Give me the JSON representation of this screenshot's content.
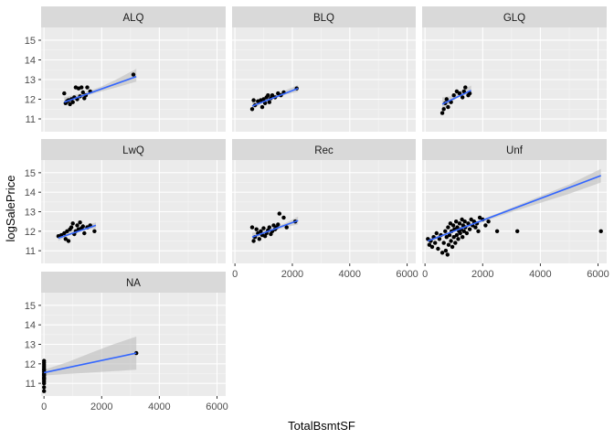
{
  "chart_data": {
    "type": "scatter",
    "title": "",
    "xlabel": "TotalBsmtSF",
    "ylabel": "logSalePrice",
    "xlim": [
      -100,
      6300
    ],
    "ylim": [
      10.35,
      15.65
    ],
    "x_ticks": [
      0,
      2000,
      4000,
      6000
    ],
    "y_ticks": [
      11,
      12,
      13,
      14,
      15
    ],
    "grid": true,
    "smooth": "linear fit with confidence band",
    "colors": {
      "panel_bg": "#ebebeb",
      "strip_bg": "#d9d9d9",
      "grid_major": "#ffffff",
      "grid_minor": "#f5f5f5",
      "point": "#000000",
      "fit_line": "#3366ff",
      "band": "#bdbdbd"
    },
    "facets": [
      {
        "label": "ALQ",
        "fit": {
          "x": [
            700,
            3200
          ],
          "y": [
            11.85,
            13.15
          ]
        },
        "band": {
          "x": [
            700,
            1000,
            1500,
            2000,
            2500,
            3200
          ],
          "lower": [
            11.68,
            11.95,
            12.2,
            12.4,
            12.6,
            12.9
          ],
          "upper": [
            12.1,
            12.2,
            12.38,
            12.65,
            13.0,
            13.55
          ]
        },
        "points": [
          [
            700,
            12.3
          ],
          [
            750,
            11.8
          ],
          [
            800,
            11.9
          ],
          [
            850,
            11.95
          ],
          [
            900,
            11.75
          ],
          [
            950,
            12.0
          ],
          [
            1000,
            11.85
          ],
          [
            1050,
            12.1
          ],
          [
            1100,
            12.6
          ],
          [
            1150,
            12.0
          ],
          [
            1200,
            12.55
          ],
          [
            1250,
            12.15
          ],
          [
            1300,
            12.6
          ],
          [
            1350,
            12.35
          ],
          [
            1400,
            12.05
          ],
          [
            1450,
            12.2
          ],
          [
            1500,
            12.6
          ],
          [
            1600,
            12.4
          ],
          [
            3100,
            13.25
          ]
        ]
      },
      {
        "label": "BLQ",
        "fit": {
          "x": [
            600,
            2200
          ],
          "y": [
            11.65,
            12.55
          ]
        },
        "band": {
          "x": [
            600,
            1000,
            1400,
            1800,
            2200
          ],
          "lower": [
            11.45,
            11.85,
            12.05,
            12.25,
            12.38
          ],
          "upper": [
            11.85,
            12.0,
            12.22,
            12.48,
            12.72
          ]
        },
        "points": [
          [
            600,
            11.5
          ],
          [
            650,
            11.95
          ],
          [
            700,
            11.7
          ],
          [
            800,
            11.9
          ],
          [
            900,
            11.95
          ],
          [
            950,
            11.6
          ],
          [
            1000,
            12.0
          ],
          [
            1050,
            11.8
          ],
          [
            1100,
            12.1
          ],
          [
            1150,
            12.2
          ],
          [
            1200,
            11.85
          ],
          [
            1250,
            12.05
          ],
          [
            1300,
            12.2
          ],
          [
            1400,
            12.1
          ],
          [
            1500,
            12.3
          ],
          [
            1600,
            12.2
          ],
          [
            1700,
            12.35
          ],
          [
            2150,
            12.55
          ]
        ]
      },
      {
        "label": "GLQ",
        "fit": {
          "x": [
            600,
            1600
          ],
          "y": [
            11.75,
            12.45
          ]
        },
        "band": {
          "x": [
            600,
            900,
            1200,
            1600
          ],
          "lower": [
            11.4,
            11.85,
            12.15,
            12.3
          ],
          "upper": [
            12.1,
            12.15,
            12.4,
            12.7
          ]
        },
        "points": [
          [
            600,
            11.3
          ],
          [
            650,
            11.5
          ],
          [
            700,
            11.8
          ],
          [
            750,
            12.0
          ],
          [
            800,
            11.6
          ],
          [
            900,
            11.85
          ],
          [
            1000,
            12.2
          ],
          [
            1100,
            12.4
          ],
          [
            1200,
            12.3
          ],
          [
            1300,
            12.1
          ],
          [
            1350,
            12.4
          ],
          [
            1400,
            12.6
          ],
          [
            1500,
            12.2
          ],
          [
            1550,
            12.3
          ]
        ]
      },
      {
        "label": "LwQ",
        "fit": {
          "x": [
            500,
            1800
          ],
          "y": [
            11.65,
            12.3
          ]
        },
        "band": {
          "x": [
            500,
            900,
            1300,
            1800
          ],
          "lower": [
            11.5,
            11.82,
            12.05,
            12.15
          ],
          "upper": [
            11.85,
            12.02,
            12.25,
            12.45
          ]
        },
        "points": [
          [
            500,
            11.75
          ],
          [
            600,
            11.8
          ],
          [
            700,
            11.9
          ],
          [
            750,
            11.6
          ],
          [
            800,
            12.0
          ],
          [
            850,
            11.5
          ],
          [
            900,
            12.1
          ],
          [
            950,
            12.2
          ],
          [
            1000,
            12.4
          ],
          [
            1050,
            11.85
          ],
          [
            1100,
            12.0
          ],
          [
            1150,
            12.3
          ],
          [
            1200,
            12.1
          ],
          [
            1250,
            12.45
          ],
          [
            1300,
            12.15
          ],
          [
            1350,
            12.25
          ],
          [
            1400,
            11.9
          ],
          [
            1500,
            12.2
          ],
          [
            1600,
            12.3
          ],
          [
            1750,
            12.0
          ]
        ]
      },
      {
        "label": "Rec",
        "fit": {
          "x": [
            600,
            2200
          ],
          "y": [
            11.7,
            12.55
          ]
        },
        "band": {
          "x": [
            600,
            1000,
            1400,
            1800,
            2200
          ],
          "lower": [
            11.52,
            11.85,
            12.05,
            12.22,
            12.35
          ],
          "upper": [
            11.92,
            12.02,
            12.2,
            12.45,
            12.75
          ]
        },
        "points": [
          [
            600,
            12.2
          ],
          [
            650,
            11.5
          ],
          [
            700,
            11.7
          ],
          [
            750,
            12.1
          ],
          [
            800,
            11.9
          ],
          [
            850,
            11.6
          ],
          [
            900,
            12.0
          ],
          [
            950,
            11.8
          ],
          [
            1000,
            12.15
          ],
          [
            1050,
            11.75
          ],
          [
            1100,
            11.9
          ],
          [
            1150,
            12.05
          ],
          [
            1200,
            12.2
          ],
          [
            1250,
            11.85
          ],
          [
            1300,
            12.0
          ],
          [
            1350,
            12.3
          ],
          [
            1400,
            12.1
          ],
          [
            1450,
            12.2
          ],
          [
            1500,
            12.35
          ],
          [
            1550,
            12.9
          ],
          [
            1700,
            12.7
          ],
          [
            1800,
            12.2
          ],
          [
            2100,
            12.5
          ]
        ]
      },
      {
        "label": "Unf",
        "fit": {
          "x": [
            100,
            6100
          ],
          "y": [
            11.5,
            14.85
          ]
        },
        "band": {
          "x": [
            100,
            1000,
            2000,
            3000,
            4000,
            5000,
            6100
          ],
          "lower": [
            11.4,
            11.98,
            12.48,
            12.98,
            13.45,
            13.92,
            14.5
          ],
          "upper": [
            11.6,
            12.05,
            12.62,
            13.2,
            13.8,
            14.4,
            15.2
          ]
        },
        "points": [
          [
            100,
            11.6
          ],
          [
            150,
            11.3
          ],
          [
            200,
            11.5
          ],
          [
            250,
            11.2
          ],
          [
            300,
            11.7
          ],
          [
            350,
            11.4
          ],
          [
            400,
            11.9
          ],
          [
            450,
            11.1
          ],
          [
            500,
            11.6
          ],
          [
            550,
            11.8
          ],
          [
            600,
            10.9
          ],
          [
            650,
            11.4
          ],
          [
            700,
            12.0
          ],
          [
            720,
            11.0
          ],
          [
            750,
            11.7
          ],
          [
            780,
            10.8
          ],
          [
            800,
            12.2
          ],
          [
            820,
            11.3
          ],
          [
            850,
            11.8
          ],
          [
            880,
            12.4
          ],
          [
            900,
            11.5
          ],
          [
            920,
            12.0
          ],
          [
            950,
            11.2
          ],
          [
            980,
            12.3
          ],
          [
            1000,
            11.7
          ],
          [
            1020,
            12.1
          ],
          [
            1050,
            11.4
          ],
          [
            1080,
            12.5
          ],
          [
            1100,
            11.8
          ],
          [
            1120,
            12.2
          ],
          [
            1150,
            11.6
          ],
          [
            1180,
            12.0
          ],
          [
            1200,
            12.4
          ],
          [
            1220,
            11.9
          ],
          [
            1250,
            12.1
          ],
          [
            1280,
            12.6
          ],
          [
            1300,
            11.7
          ],
          [
            1320,
            12.3
          ],
          [
            1350,
            12.0
          ],
          [
            1380,
            12.5
          ],
          [
            1400,
            12.2
          ],
          [
            1450,
            11.9
          ],
          [
            1500,
            12.4
          ],
          [
            1550,
            12.1
          ],
          [
            1600,
            12.6
          ],
          [
            1650,
            12.3
          ],
          [
            1700,
            12.5
          ],
          [
            1750,
            12.2
          ],
          [
            1800,
            12.4
          ],
          [
            1850,
            12.0
          ],
          [
            1900,
            12.7
          ],
          [
            2000,
            12.6
          ],
          [
            2100,
            12.3
          ],
          [
            2200,
            12.5
          ],
          [
            2500,
            12.0
          ],
          [
            3200,
            12.0
          ],
          [
            6100,
            12.0
          ]
        ]
      },
      {
        "label": "NA",
        "fit": {
          "x": [
            0,
            3200
          ],
          "y": [
            11.55,
            12.55
          ]
        },
        "band": {
          "x": [
            0,
            800,
            1600,
            2400,
            3200
          ],
          "lower": [
            11.4,
            11.48,
            11.55,
            11.62,
            11.7
          ],
          "upper": [
            11.7,
            12.08,
            12.55,
            13.0,
            13.4
          ]
        },
        "points": [
          [
            0,
            10.6
          ],
          [
            0,
            10.8
          ],
          [
            0,
            11.0
          ],
          [
            0,
            11.1
          ],
          [
            0,
            11.2
          ],
          [
            0,
            11.3
          ],
          [
            0,
            11.4
          ],
          [
            0,
            11.5
          ],
          [
            0,
            11.6
          ],
          [
            0,
            11.7
          ],
          [
            0,
            11.75
          ],
          [
            0,
            11.85
          ],
          [
            0,
            11.95
          ],
          [
            0,
            12.05
          ],
          [
            0,
            12.15
          ],
          [
            0,
            11.25
          ],
          [
            0,
            11.45
          ],
          [
            3200,
            12.55
          ]
        ]
      }
    ]
  }
}
